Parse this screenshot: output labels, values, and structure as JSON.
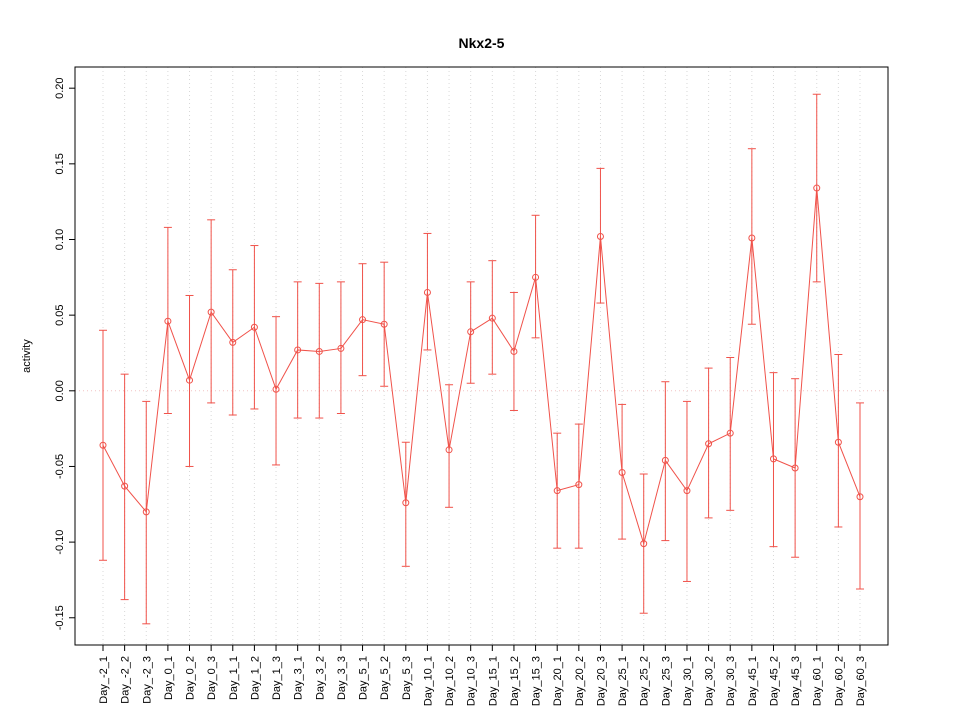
{
  "chart_data": {
    "type": "line",
    "title": "Nkx2-5",
    "xlabel": "",
    "ylabel": "activity",
    "ylim": [
      -0.15,
      0.2
    ],
    "yticks": [
      -0.15,
      -0.1,
      -0.05,
      0.0,
      0.05,
      0.1,
      0.15,
      0.2
    ],
    "grid": "vertical-dotted",
    "zero_line": true,
    "legend": "none",
    "marker": "open-circle",
    "error_bars": true,
    "colors": {
      "series": "#f0524a",
      "grid": "#d8d8d8",
      "zero_line": "#f2c4c4",
      "axis": "#000000"
    },
    "categories": [
      "Day_-2_1",
      "Day_-2_2",
      "Day_-2_3",
      "Day_0_1",
      "Day_0_2",
      "Day_0_3",
      "Day_1_1",
      "Day_1_2",
      "Day_1_3",
      "Day_3_1",
      "Day_3_2",
      "Day_3_3",
      "Day_5_1",
      "Day_5_2",
      "Day_5_3",
      "Day_10_1",
      "Day_10_2",
      "Day_10_3",
      "Day_15_1",
      "Day_15_2",
      "Day_15_3",
      "Day_20_1",
      "Day_20_2",
      "Day_20_3",
      "Day_25_1",
      "Day_25_2",
      "Day_25_3",
      "Day_30_1",
      "Day_30_2",
      "Day_30_3",
      "Day_45_1",
      "Day_45_2",
      "Day_45_3",
      "Day_60_1",
      "Day_60_2",
      "Day_60_3"
    ],
    "series": [
      {
        "name": "activity",
        "values": [
          -0.036,
          -0.063,
          -0.08,
          0.046,
          0.007,
          0.052,
          0.032,
          0.042,
          0.001,
          0.027,
          0.026,
          0.028,
          0.047,
          0.044,
          -0.074,
          0.065,
          -0.039,
          0.039,
          0.048,
          0.026,
          0.075,
          -0.066,
          -0.062,
          0.102,
          -0.054,
          -0.101,
          -0.046,
          -0.066,
          -0.035,
          -0.028,
          0.101,
          -0.045,
          -0.051,
          0.134,
          -0.034,
          -0.07
        ],
        "lower": [
          -0.112,
          -0.138,
          -0.154,
          -0.015,
          -0.05,
          -0.008,
          -0.016,
          -0.012,
          -0.049,
          -0.018,
          -0.018,
          -0.015,
          0.01,
          0.003,
          -0.116,
          0.027,
          -0.077,
          0.005,
          0.011,
          -0.013,
          0.035,
          -0.104,
          -0.104,
          0.058,
          -0.098,
          -0.147,
          -0.099,
          -0.126,
          -0.084,
          -0.079,
          0.044,
          -0.103,
          -0.11,
          0.072,
          -0.09,
          -0.131
        ],
        "upper": [
          0.04,
          0.011,
          -0.007,
          0.108,
          0.063,
          0.113,
          0.08,
          0.096,
          0.049,
          0.072,
          0.071,
          0.072,
          0.084,
          0.085,
          -0.034,
          0.104,
          0.004,
          0.072,
          0.086,
          0.065,
          0.116,
          -0.028,
          -0.022,
          0.147,
          -0.009,
          -0.055,
          0.006,
          -0.007,
          0.015,
          0.022,
          0.16,
          0.012,
          0.008,
          0.196,
          0.024,
          -0.008
        ]
      }
    ]
  }
}
